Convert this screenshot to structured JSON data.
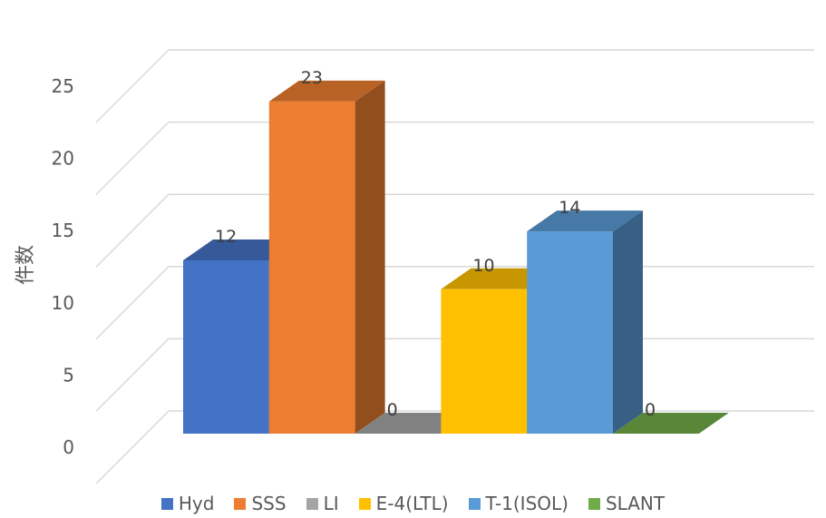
{
  "chart_data": {
    "type": "bar",
    "ylabel": "件数",
    "ylim": [
      0,
      25
    ],
    "yticks": [
      "0",
      "5",
      "10",
      "15",
      "20",
      "25"
    ],
    "series": [
      {
        "name": "Hyd",
        "value": 12,
        "color": "#4472c4"
      },
      {
        "name": "SSS",
        "value": 23,
        "color": "#ed7d31"
      },
      {
        "name": "LI",
        "value": 0,
        "color": "#a5a5a5"
      },
      {
        "name": "E-4(LTL)",
        "value": 10,
        "color": "#ffc000"
      },
      {
        "name": "T-1(ISOL)",
        "value": 14,
        "color": "#5b9bd5"
      },
      {
        "name": "SLANT",
        "value": 0,
        "color": "#70ad47"
      }
    ],
    "data_labels": [
      "12",
      "23",
      "0",
      "10",
      "14",
      "0"
    ],
    "grid": true,
    "legend_position": "bottom",
    "style": "3d-clustered-column"
  }
}
